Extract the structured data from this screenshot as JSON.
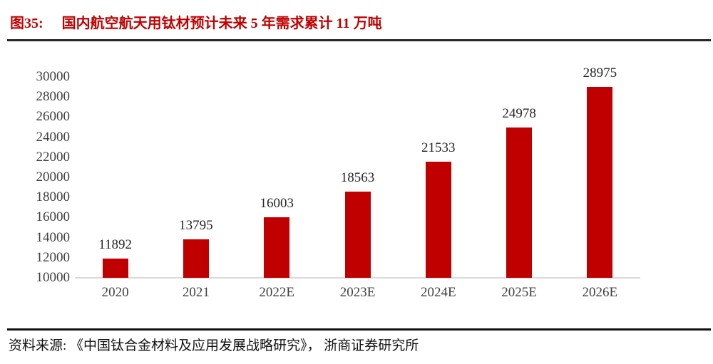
{
  "header": {
    "label": "图35:",
    "title": "国内航空航天用钛材预计未来 5 年需求累计 11 万吨"
  },
  "source_text": "资料来源: 《中国钛合金材料及应用发展战略研究》， 浙商证券研究所",
  "colors": {
    "bar": "#c00000",
    "title": "#c00000",
    "axis_line": "#d9d9d9",
    "tick_text": "#404040",
    "value_label_text": "#262626",
    "header_rule": "#262626",
    "source_rule": "#111111"
  },
  "chart_data": {
    "type": "bar",
    "title": "国内航空航天用钛材预计未来 5 年需求累计 11 万吨",
    "categories": [
      "2020",
      "2021",
      "2022E",
      "2023E",
      "2024E",
      "2025E",
      "2026E"
    ],
    "values": [
      11892,
      13795,
      16003,
      18563,
      21533,
      24978,
      28975
    ],
    "xlabel": "",
    "ylabel": "",
    "ylim": [
      10000,
      30000
    ],
    "ytick_step": 2000,
    "ytick_labels": [
      "10000",
      "12000",
      "14000",
      "16000",
      "18000",
      "20000",
      "22000",
      "24000",
      "26000",
      "28000",
      "30000"
    ],
    "grid": false,
    "legend": false,
    "value_labels": true
  }
}
